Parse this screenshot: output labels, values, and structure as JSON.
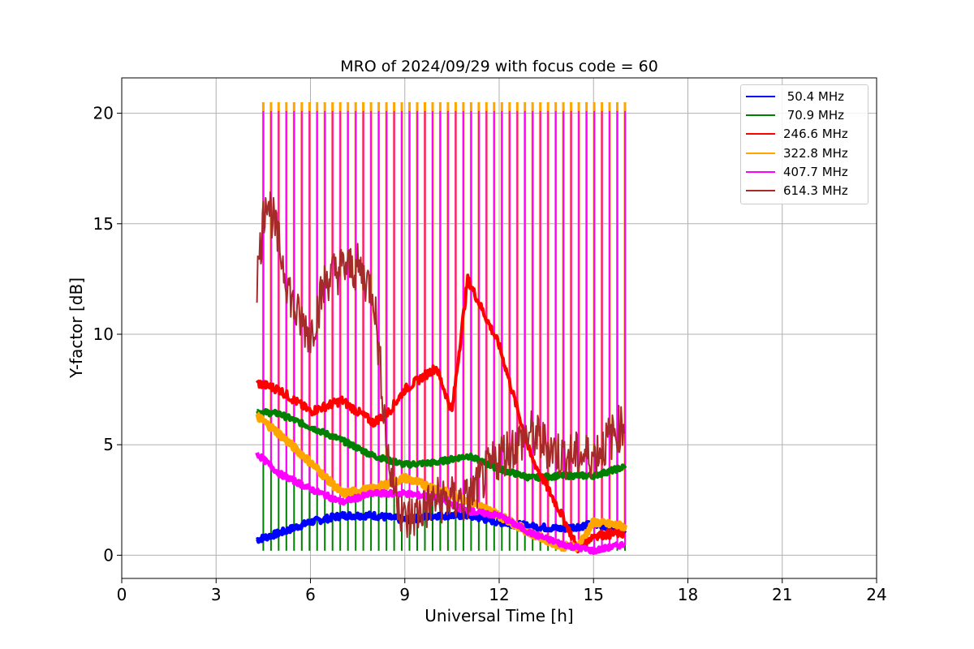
{
  "chart_data": {
    "type": "line",
    "title": "MRO of 2024/09/29 with focus code = 60",
    "xlabel": "Universal Time [h]",
    "ylabel": "Y-factor [dB]",
    "xlim": [
      0,
      24
    ],
    "ylim": [
      -1.05,
      21.6
    ],
    "xticks": [
      "0",
      "3",
      "6",
      "9",
      "12",
      "15",
      "18",
      "21",
      "24"
    ],
    "yticks": [
      "0",
      "5",
      "10",
      "15",
      "20"
    ],
    "grid": true,
    "legend_position": "top-right",
    "calibration_spikes": {
      "start": 4.5,
      "end": 16.0,
      "count": 48,
      "peaks": {
        "50.4 MHz": 0.1,
        "70.9 MHz": 0.3,
        "246.6 MHz": 11.2,
        "322.8 MHz": 20.5,
        "407.7 MHz": 20.1,
        "614.3 MHz": 11.2
      }
    },
    "series": [
      {
        "name": " 50.4 MHz",
        "color": "#0000ff",
        "x": [
          4.3,
          5,
          6,
          7,
          8,
          9,
          10,
          11,
          12,
          13,
          14,
          15,
          16
        ],
        "y": [
          0.7,
          1.0,
          1.5,
          1.8,
          1.8,
          1.6,
          1.8,
          1.8,
          1.5,
          1.3,
          1.2,
          1.4,
          1.2
        ]
      },
      {
        "name": " 70.9 MHz",
        "color": "#008000",
        "x": [
          4.3,
          5,
          6,
          7,
          8,
          9,
          10,
          11,
          12,
          13,
          14,
          15,
          16
        ],
        "y": [
          6.5,
          6.4,
          5.8,
          5.2,
          4.5,
          4.1,
          4.2,
          4.5,
          3.9,
          3.5,
          3.6,
          3.6,
          4.0
        ]
      },
      {
        "name": "246.6 MHz",
        "color": "#ff0000",
        "x": [
          4.3,
          5,
          6,
          7,
          7.5,
          8,
          8.5,
          9,
          10,
          10.5,
          11,
          12,
          13,
          14,
          14.5,
          15,
          16
        ],
        "y": [
          7.8,
          7.5,
          6.5,
          7.0,
          6.5,
          6.0,
          6.5,
          7.5,
          8.5,
          6.5,
          12.5,
          9.5,
          4.5,
          1.8,
          0.3,
          0.9,
          1.0
        ]
      },
      {
        "name": "322.8 MHz",
        "color": "#ffa500",
        "x": [
          4.3,
          5,
          6,
          7,
          8,
          9,
          10,
          11,
          12,
          13,
          14,
          14.5,
          15,
          16
        ],
        "y": [
          6.3,
          5.5,
          4.2,
          2.8,
          3.0,
          3.5,
          3.0,
          2.5,
          1.8,
          1.0,
          0.4,
          0.4,
          1.5,
          1.3
        ]
      },
      {
        "name": "407.7 MHz",
        "color": "#ff00ff",
        "x": [
          4.3,
          5,
          6,
          7,
          8,
          9,
          10,
          11,
          12,
          13,
          14,
          15,
          16
        ],
        "y": [
          4.6,
          3.7,
          3.0,
          2.4,
          2.8,
          2.8,
          2.6,
          2.0,
          1.8,
          1.0,
          0.5,
          0.2,
          0.5
        ]
      },
      {
        "name": "614.3 MHz",
        "color": "#a52a2a",
        "x": [
          4.3,
          4.6,
          5,
          5.5,
          6,
          6.5,
          7,
          7.5,
          8,
          8.5,
          9,
          9.5,
          10,
          11,
          12,
          13,
          14,
          15,
          16
        ],
        "y": [
          12.5,
          16.5,
          14.0,
          11.0,
          10.0,
          12.5,
          13.0,
          13.0,
          12.0,
          4.0,
          1.5,
          2.0,
          2.5,
          2.5,
          4.5,
          5.5,
          4.5,
          4.5,
          6.0
        ]
      }
    ]
  }
}
